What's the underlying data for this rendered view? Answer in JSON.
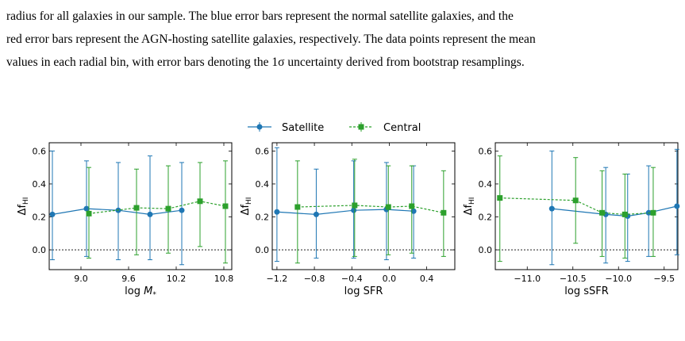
{
  "caption": {
    "lines": [
      "radius for all galaxies in our sample. The blue error bars represent the normal satellite galaxies, and the",
      "red error bars represent the AGN-hosting satellite galaxies, respectively. The data points represent the mean",
      "values in each radial bin, with error bars denoting the 1σ uncertainty derived from bootstrap resamplings."
    ]
  },
  "colors": {
    "satellite": "#1f77b4",
    "central": "#2ca02c"
  },
  "legend": {
    "satellite": "Satellite",
    "central": "Central"
  },
  "chart_data": [
    {
      "type": "scatter",
      "xlabel": "log M_*",
      "ylabel": "Δf_HI",
      "xlim": [
        8.6,
        10.9
      ],
      "ylim": [
        -0.12,
        0.65
      ],
      "xticks": [
        9.0,
        9.6,
        10.2,
        10.8
      ],
      "xtick_labels": [
        "9.0",
        "9.6",
        "10.2",
        "10.8"
      ],
      "yticks": [
        0.0,
        0.2,
        0.4,
        0.6
      ],
      "ytick_labels": [
        "0.0",
        "0.2",
        "0.4",
        "0.6"
      ],
      "series": [
        {
          "name": "Satellite",
          "x": [
            8.64,
            9.07,
            9.47,
            9.87,
            10.27
          ],
          "y": [
            0.215,
            0.25,
            0.24,
            0.215,
            0.24
          ],
          "ylow": [
            -0.06,
            -0.04,
            -0.06,
            -0.06,
            -0.09
          ],
          "yhigh": [
            0.6,
            0.54,
            0.53,
            0.57,
            0.53
          ]
        },
        {
          "name": "Central",
          "x": [
            9.1,
            9.7,
            10.1,
            10.5,
            10.82
          ],
          "y": [
            0.22,
            0.255,
            0.25,
            0.295,
            0.265
          ],
          "ylow": [
            -0.05,
            -0.03,
            -0.02,
            0.02,
            -0.08
          ],
          "yhigh": [
            0.5,
            0.49,
            0.51,
            0.53,
            0.54
          ]
        }
      ]
    },
    {
      "type": "scatter",
      "xlabel": "log SFR",
      "ylabel": "Δf_HI",
      "xlim": [
        -1.25,
        0.7
      ],
      "ylim": [
        -0.12,
        0.65
      ],
      "xticks": [
        -1.2,
        -0.8,
        -0.4,
        0.0,
        0.4
      ],
      "xtick_labels": [
        "−1.2",
        "−0.8",
        "−0.4",
        "0.0",
        "0.4"
      ],
      "yticks": [
        0.0,
        0.2,
        0.4,
        0.6
      ],
      "ytick_labels": [
        "0.0",
        "0.2",
        "0.4",
        "0.6"
      ],
      "series": [
        {
          "name": "Satellite",
          "x": [
            -1.2,
            -0.78,
            -0.38,
            -0.03,
            0.26
          ],
          "y": [
            0.23,
            0.215,
            0.24,
            0.245,
            0.235
          ],
          "ylow": [
            -0.07,
            -0.05,
            -0.05,
            -0.06,
            -0.05
          ],
          "yhigh": [
            0.62,
            0.49,
            0.54,
            0.53,
            0.51
          ]
        },
        {
          "name": "Central",
          "x": [
            -0.98,
            -0.37,
            -0.01,
            0.24,
            0.58
          ],
          "y": [
            0.26,
            0.27,
            0.26,
            0.265,
            0.225
          ],
          "ylow": [
            -0.08,
            -0.04,
            -0.03,
            -0.02,
            -0.04
          ],
          "yhigh": [
            0.54,
            0.55,
            0.51,
            0.51,
            0.48
          ]
        }
      ]
    },
    {
      "type": "scatter",
      "xlabel": "log sSFR",
      "ylabel": "Δf_HI",
      "xlim": [
        -11.35,
        -9.35
      ],
      "ylim": [
        -0.12,
        0.65
      ],
      "xticks": [
        -11.0,
        -10.5,
        -10.0,
        -9.5
      ],
      "xtick_labels": [
        "−11.0",
        "−10.5",
        "−10.0",
        "−9.5"
      ],
      "yticks": [
        0.0,
        0.2,
        0.4,
        0.6
      ],
      "ytick_labels": [
        "0.0",
        "0.2",
        "0.4",
        "0.6"
      ],
      "series": [
        {
          "name": "Satellite",
          "x": [
            -10.73,
            -10.14,
            -9.9,
            -9.67,
            -9.36
          ],
          "y": [
            0.25,
            0.215,
            0.205,
            0.225,
            0.265
          ],
          "ylow": [
            -0.09,
            -0.08,
            -0.07,
            -0.04,
            -0.03
          ],
          "yhigh": [
            0.6,
            0.5,
            0.46,
            0.51,
            0.61
          ]
        },
        {
          "name": "Central",
          "x": [
            -11.3,
            -10.47,
            -10.18,
            -9.93,
            -9.62
          ],
          "y": [
            0.315,
            0.3,
            0.225,
            0.215,
            0.225
          ],
          "ylow": [
            -0.07,
            0.04,
            -0.04,
            -0.05,
            -0.04
          ],
          "yhigh": [
            0.57,
            0.56,
            0.48,
            0.46,
            0.5
          ]
        }
      ]
    }
  ]
}
